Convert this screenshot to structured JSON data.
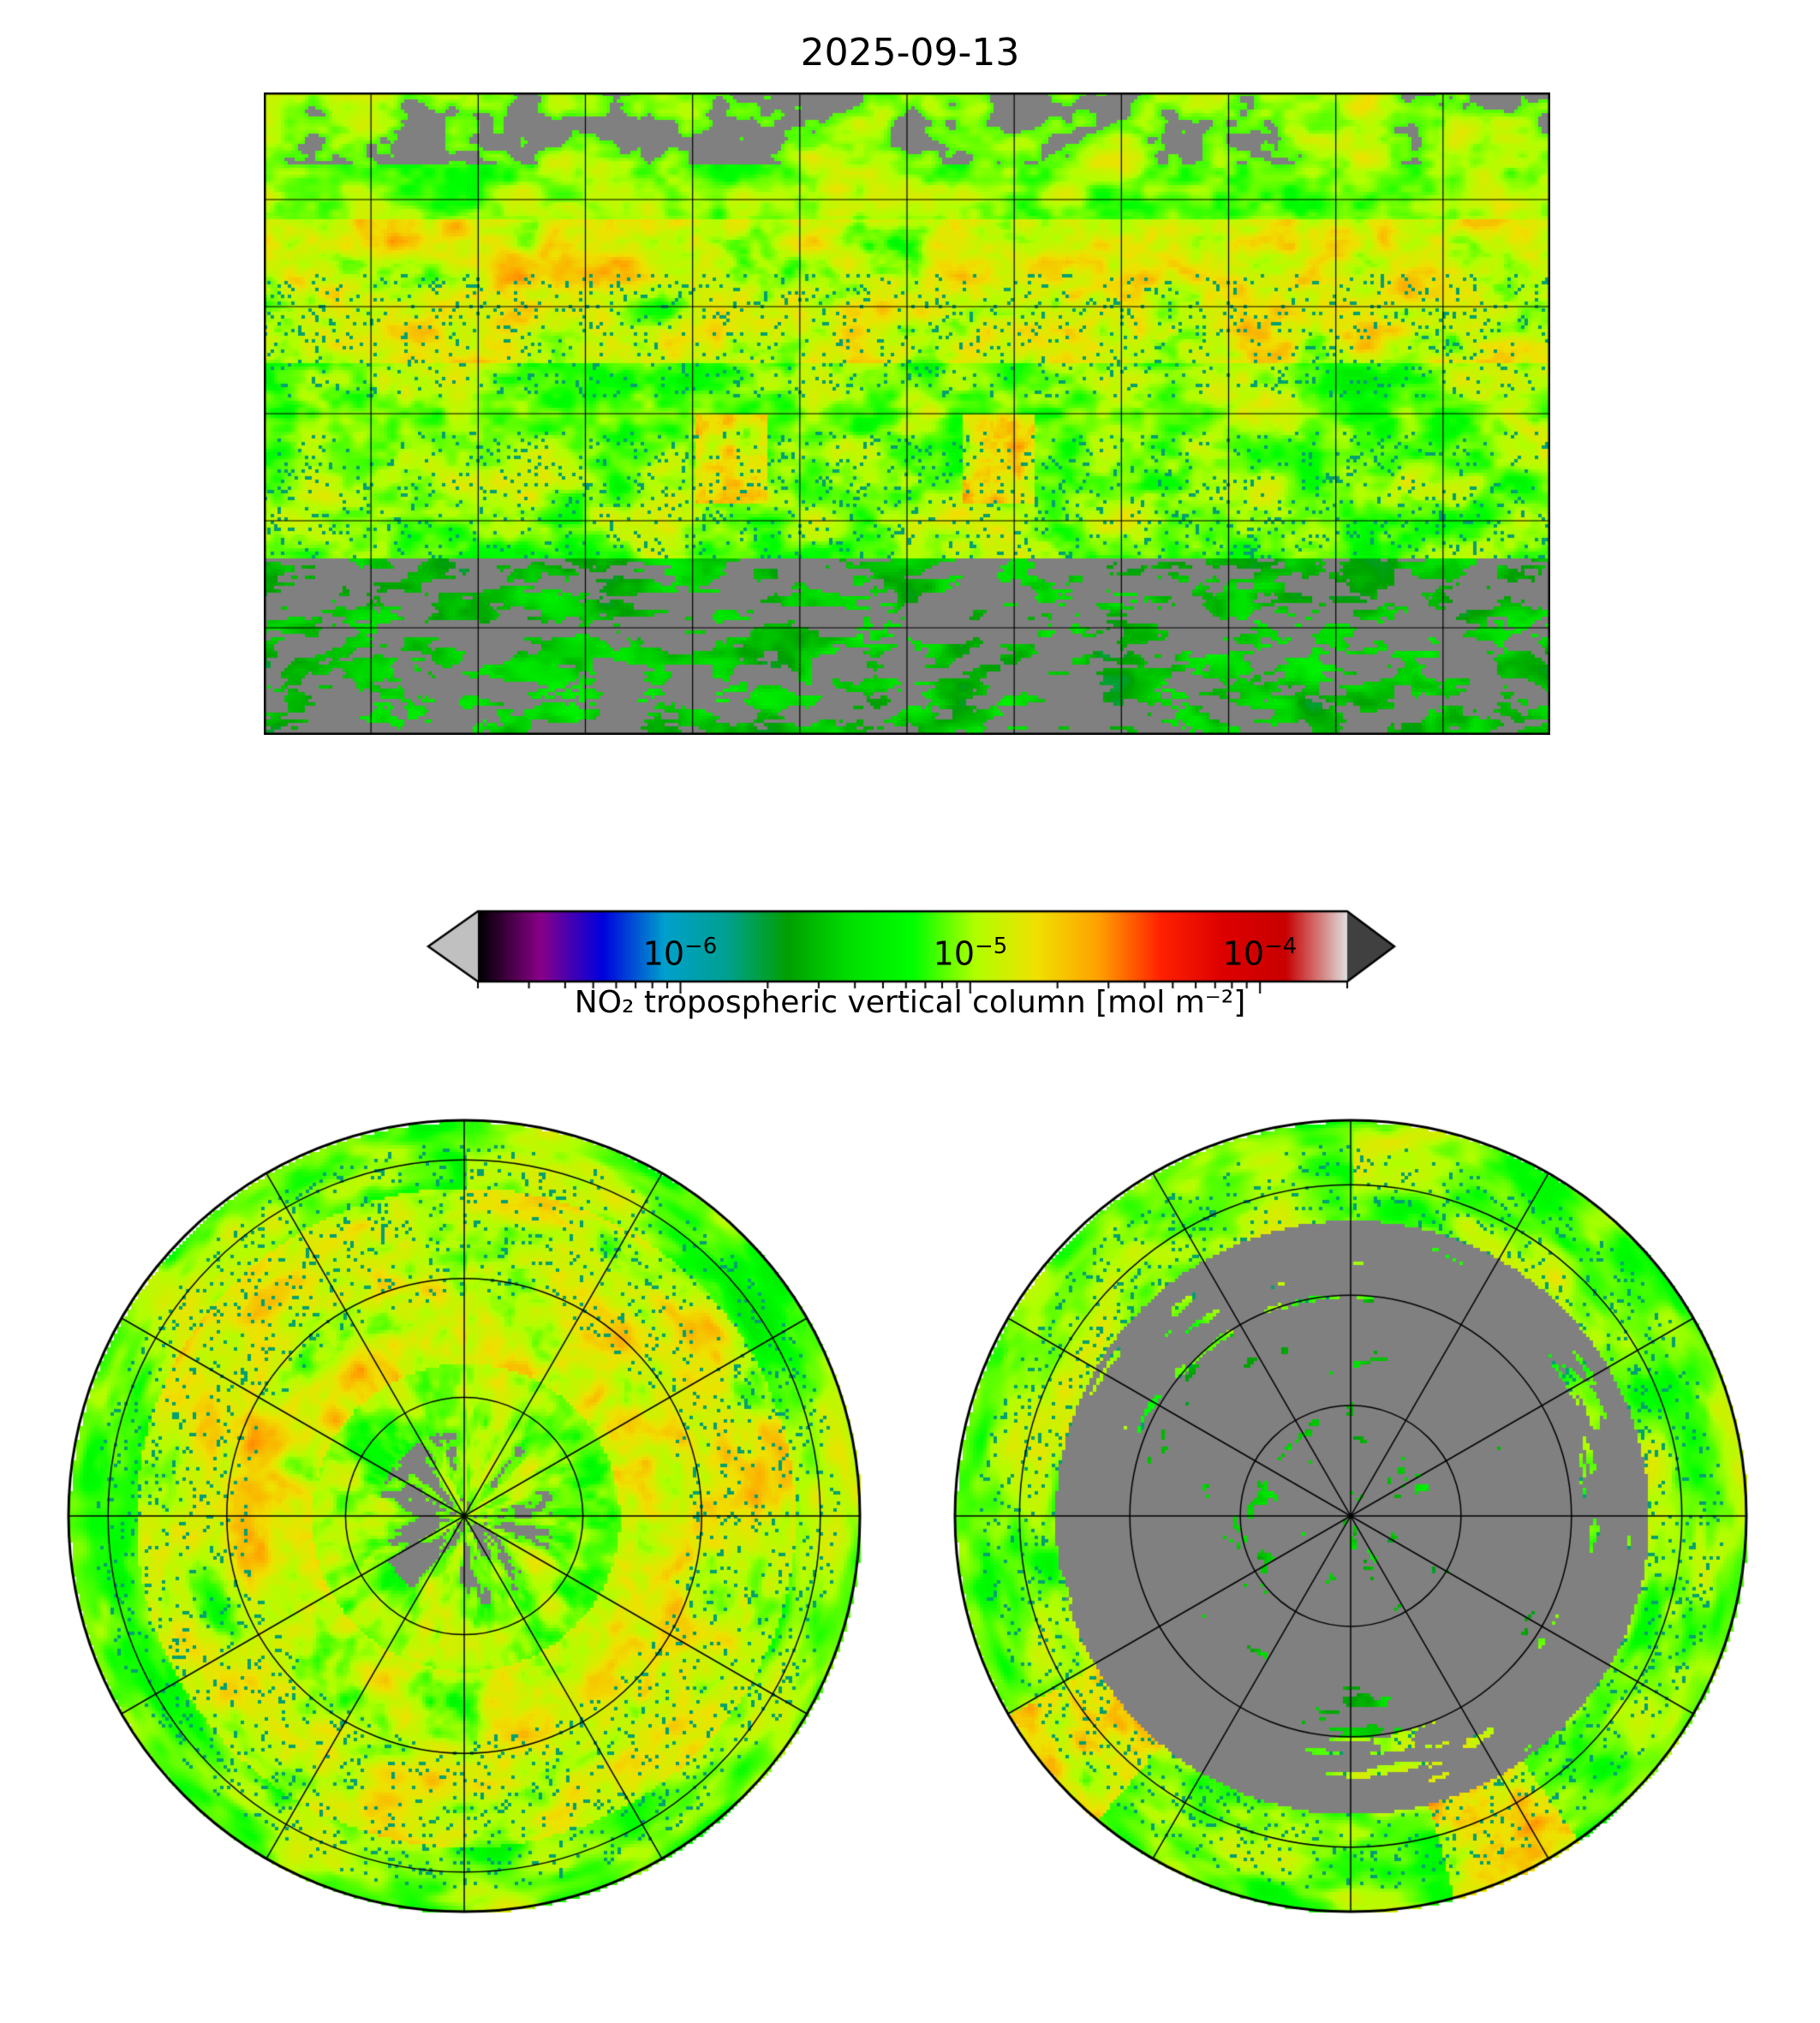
{
  "chart_data": {
    "type": "heatmap",
    "title": "2025-09-13",
    "variable_label": "NO₂ tropospheric vertical column [mol m⁻²]",
    "colorbar": {
      "scale": "log",
      "range": [
        2e-07,
        0.0002
      ],
      "extend": "both",
      "major_ticks": [
        1e-06,
        1e-05,
        0.0001
      ],
      "tick_labels": [
        {
          "base": "10",
          "exp": "−6"
        },
        {
          "base": "10",
          "exp": "−5"
        },
        {
          "base": "10",
          "exp": "−4"
        }
      ],
      "colors": [
        "#000000",
        "#880088",
        "#0000dd",
        "#00a0cc",
        "#00a090",
        "#00a000",
        "#00e000",
        "#00ff00",
        "#b0ff00",
        "#f0e000",
        "#ffa000",
        "#ff2000",
        "#dd0000",
        "#c80000",
        "#e0e0e0"
      ],
      "under_color": "#c0c0c0",
      "over_color": "#404040",
      "missing_color": "#808080"
    },
    "panels": [
      {
        "name": "global",
        "projection": "PlateCarree",
        "gridlines_lon_step": 30,
        "gridlines_lat_step": 30
      },
      {
        "name": "north-polar",
        "projection": "NorthPolarStereo"
      },
      {
        "name": "south-polar",
        "projection": "SouthPolarStereo"
      }
    ]
  }
}
